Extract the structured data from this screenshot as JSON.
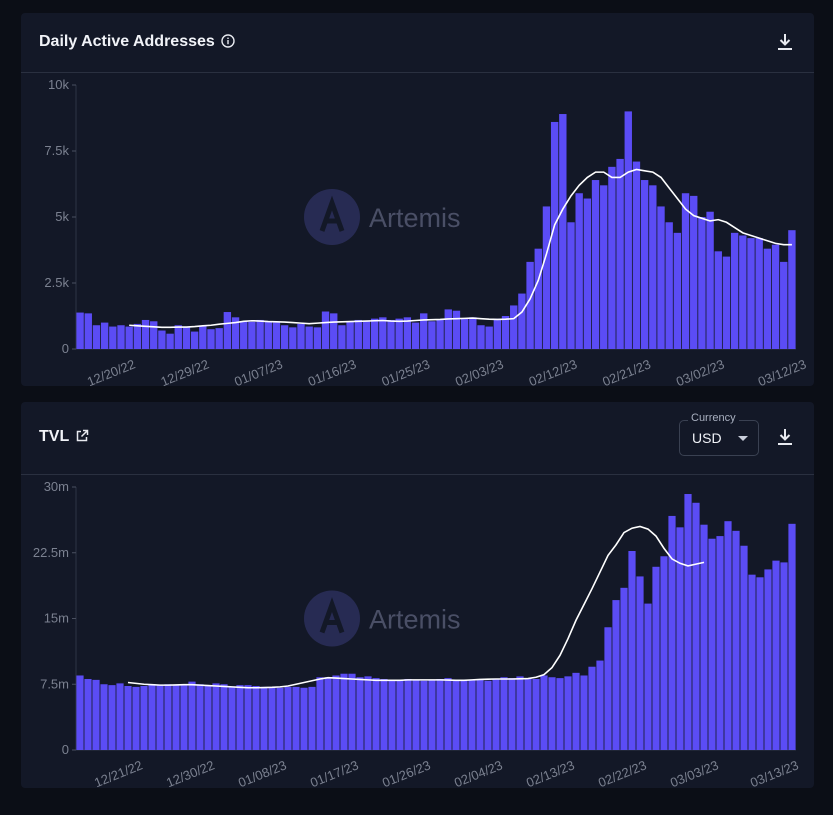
{
  "charts": [
    {
      "title": "Daily Active Addresses",
      "title_icon": "info-icon",
      "download_icon": "download-icon"
    },
    {
      "title": "TVL",
      "title_icon": "external-link-icon",
      "download_icon": "download-icon",
      "currency": {
        "label": "Currency",
        "value": "USD"
      }
    }
  ],
  "watermark": "Artemis",
  "colors": {
    "bar": "#5b4cf5",
    "line": "#ffffff",
    "background": "#131827",
    "axis": "#7b8190"
  },
  "chart_data": [
    {
      "type": "bar",
      "title": "Daily Active Addresses",
      "ylim": [
        0,
        10000
      ],
      "y_ticks": [
        "0",
        "2.5k",
        "5k",
        "7.5k",
        "10k"
      ],
      "y_tick_values": [
        0,
        2500,
        5000,
        7500,
        10000
      ],
      "x_ticks": [
        "12/20/22",
        "12/29/22",
        "01/07/23",
        "01/16/23",
        "01/25/23",
        "02/03/23",
        "02/12/23",
        "02/21/23",
        "03/02/23",
        "03/12/23"
      ],
      "x_tick_indices": [
        4,
        13,
        22,
        31,
        40,
        49,
        58,
        67,
        76,
        86
      ],
      "x_start": "12/16/22",
      "series": [
        {
          "name": "Daily Active Addresses",
          "type": "bar",
          "values": [
            1380,
            1350,
            900,
            1000,
            850,
            900,
            850,
            950,
            1100,
            1050,
            700,
            580,
            900,
            820,
            660,
            890,
            750,
            790,
            1400,
            1200,
            1050,
            1030,
            1100,
            1050,
            1000,
            900,
            820,
            950,
            850,
            820,
            1420,
            1350,
            900,
            1050,
            1100,
            1050,
            1150,
            1200,
            1100,
            1150,
            1200,
            1000,
            1350,
            1050,
            1100,
            1500,
            1450,
            1150,
            1200,
            900,
            850,
            1150,
            1250,
            1650,
            2100,
            3300,
            3800,
            5400,
            8600,
            8900,
            4800,
            5900,
            5700,
            6400,
            6200,
            6900,
            7200,
            9000,
            7100,
            6400,
            6200,
            5400,
            4800,
            4400,
            5900,
            5800,
            5000,
            5200,
            3700,
            3500,
            4400,
            4300,
            4200,
            4200,
            3800,
            3950,
            3300,
            4500
          ]
        },
        {
          "name": "7-Day Moving Average",
          "type": "line",
          "start_index": 6,
          "values": [
            900,
            880,
            860,
            840,
            820,
            820,
            830,
            830,
            850,
            880,
            900,
            940,
            970,
            1000,
            1050,
            1070,
            1060,
            1040,
            1030,
            1020,
            1000,
            980,
            960,
            980,
            1000,
            1020,
            1030,
            1040,
            1050,
            1060,
            1070,
            1080,
            1060,
            1050,
            1060,
            1080,
            1100,
            1110,
            1120,
            1140,
            1150,
            1160,
            1170,
            1150,
            1130,
            1120,
            1130,
            1150,
            1400,
            1900,
            2600,
            3600,
            4700,
            5300,
            5800,
            6200,
            6500,
            6700,
            6700,
            6500,
            6500,
            6700,
            6800,
            6750,
            6700,
            6500,
            6100,
            5700,
            5300,
            5050,
            4950,
            4850,
            4900,
            4800,
            4600,
            4400,
            4300,
            4200,
            4100,
            4000,
            3950,
            3950
          ]
        }
      ]
    },
    {
      "type": "bar",
      "title": "TVL",
      "ylim": [
        0,
        30000000
      ],
      "y_ticks": [
        "0",
        "7.5m",
        "15m",
        "22.5m",
        "30m"
      ],
      "y_tick_values": [
        0,
        7500000,
        15000000,
        22500000,
        30000000
      ],
      "x_ticks": [
        "12/21/22",
        "12/30/22",
        "01/08/23",
        "01/17/23",
        "01/26/23",
        "02/04/23",
        "02/13/23",
        "02/22/23",
        "03/03/23",
        "03/13/23"
      ],
      "x_tick_indices": [
        5,
        14,
        23,
        32,
        41,
        50,
        59,
        68,
        77,
        87
      ],
      "x_start": "12/16/22",
      "series": [
        {
          "name": "TVL",
          "type": "bar",
          "values": [
            8500000,
            8100000,
            8000000,
            7500000,
            7400000,
            7600000,
            7300000,
            7200000,
            7300000,
            7500000,
            7400000,
            7500000,
            7400000,
            7500000,
            7800000,
            7500000,
            7400000,
            7600000,
            7500000,
            7200000,
            7400000,
            7400000,
            7300000,
            7200000,
            7200000,
            7100000,
            7200000,
            7200000,
            7100000,
            7200000,
            8300000,
            8300000,
            8500000,
            8700000,
            8700000,
            8300000,
            8400000,
            8200000,
            8100000,
            8000000,
            8000000,
            8100000,
            8000000,
            7900000,
            8000000,
            8100000,
            8200000,
            8000000,
            7900000,
            8000000,
            8000000,
            7900000,
            8100000,
            8300000,
            8200000,
            8400000,
            8200000,
            8100000,
            8500000,
            8300000,
            8200000,
            8400000,
            8800000,
            8500000,
            9500000,
            10200000,
            14000000,
            17100000,
            18500000,
            22700000,
            19800000,
            16700000,
            20900000,
            22100000,
            26700000,
            25400000,
            29200000,
            28200000,
            25700000,
            24100000,
            24400000,
            26100000,
            25000000,
            23300000,
            20000000,
            19700000,
            20600000,
            21600000,
            21400000,
            25800000
          ]
        },
        {
          "name": "7-Day Moving Average",
          "type": "line",
          "start_index": 6,
          "values": [
            7700000,
            7600000,
            7500000,
            7450000,
            7400000,
            7400000,
            7420000,
            7450000,
            7450000,
            7400000,
            7350000,
            7300000,
            7250000,
            7200000,
            7150000,
            7100000,
            7100000,
            7120000,
            7150000,
            7200000,
            7300000,
            7500000,
            7700000,
            7900000,
            8100000,
            8250000,
            8200000,
            8150000,
            8100000,
            8050000,
            8000000,
            7950000,
            7950000,
            7950000,
            7950000,
            8000000,
            8000000,
            8000000,
            8000000,
            8000000,
            7980000,
            7950000,
            7950000,
            8000000,
            8050000,
            8080000,
            8100000,
            8100000,
            8100000,
            8120000,
            8150000,
            8300000,
            8600000,
            9400000,
            10800000,
            12700000,
            14800000,
            16600000,
            18400000,
            20300000,
            22200000,
            23400000,
            24800000,
            25300000,
            25500000,
            25200000,
            24400000,
            23000000,
            21800000,
            21300000,
            21000000,
            21200000,
            21400000
          ]
        }
      ]
    }
  ]
}
